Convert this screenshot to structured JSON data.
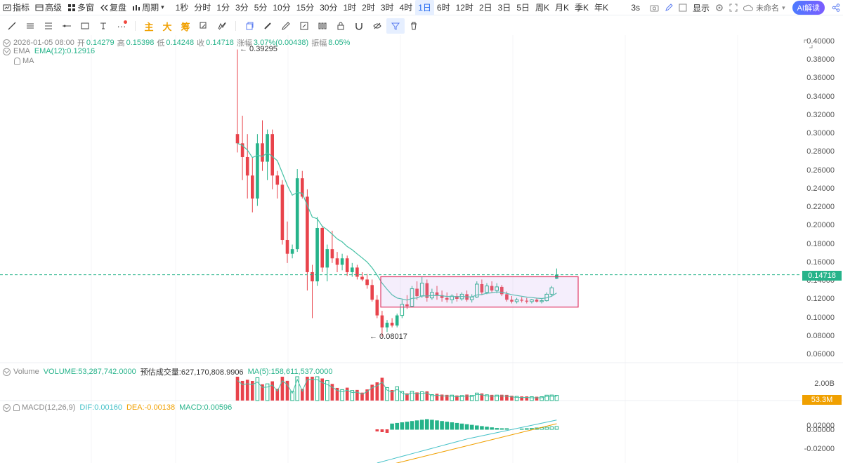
{
  "toolbar": {
    "left": [
      {
        "label": "指标",
        "icon": "indicator-icon"
      },
      {
        "label": "高级",
        "icon": "advanced-icon"
      },
      {
        "label": "多窗",
        "icon": "multi-window-icon"
      },
      {
        "label": "复盘",
        "icon": "replay-icon"
      },
      {
        "label": "周期",
        "icon": "period-icon"
      }
    ],
    "periods": [
      "1秒",
      "分时",
      "1分",
      "3分",
      "5分",
      "10分",
      "15分",
      "30分",
      "1时",
      "2时",
      "3时",
      "4时",
      "1日",
      "6时",
      "12时",
      "2日",
      "3日",
      "5日",
      "周K",
      "月K",
      "季K",
      "年K"
    ],
    "active_period": "1日",
    "refresh": "3s",
    "display": "显示",
    "workspace": "未命名",
    "ai": "AI解读"
  },
  "drawing_tools": {
    "main": "主",
    "big": "大",
    "chip": "筹"
  },
  "info": {
    "date": "2026-01-05 08:00",
    "open_label": "开",
    "open": "0.14279",
    "high_label": "高",
    "high": "0.15398",
    "low_label": "低",
    "low": "0.14248",
    "close_label": "收",
    "close": "0.14718",
    "change_label": "涨幅",
    "change": "3.07%(0.00438)",
    "amp_label": "振幅",
    "amp": "8.05%"
  },
  "ema": {
    "name": "EMA",
    "value": "EMA(12):0.12916"
  },
  "ma": {
    "name": "MA"
  },
  "volume": {
    "name": "Volume",
    "value": "VOLUME:53,287,742.0000",
    "est": "预估成交量:627,170,808.9906",
    "ma": "MA(5):158,611,537.0000",
    "axis_top": "2.00B",
    "tag": "53.3M"
  },
  "macd": {
    "name": "MACD(12,26,9)",
    "dif": "DIF:0.00160",
    "dea": "DEA:-0.00138",
    "macd": "MACD:0.00596",
    "axis": [
      "0.02000",
      "0.00000",
      "-0.02000"
    ]
  },
  "price_axis": [
    "0.40000",
    "0.38000",
    "0.36000",
    "0.34000",
    "0.32000",
    "0.30000",
    "0.28000",
    "0.26000",
    "0.24000",
    "0.22000",
    "0.20000",
    "0.18000",
    "0.16000",
    "0.14000",
    "0.12000",
    "0.10000",
    "0.08000",
    "0.06000"
  ],
  "current_price": "0.14718",
  "annotations": {
    "high": "← 0.39295",
    "low": "← 0.08017"
  },
  "colors": {
    "up": "#26b38a",
    "down": "#e8434b",
    "ema": "#45c1a5",
    "box": "#e03c6a",
    "dea": "#f0a000",
    "dif": "#45c1c8"
  },
  "chart_data": {
    "type": "candlestick",
    "ylim": [
      0.06,
      0.4
    ],
    "series": [
      {
        "name": "EMA(12)"
      }
    ],
    "candles": [
      [
        0.3,
        0.392,
        0.28,
        0.29
      ],
      [
        0.29,
        0.32,
        0.25,
        0.275
      ],
      [
        0.275,
        0.3,
        0.23,
        0.255
      ],
      [
        0.255,
        0.275,
        0.215,
        0.23
      ],
      [
        0.23,
        0.3,
        0.222,
        0.29
      ],
      [
        0.29,
        0.315,
        0.26,
        0.27
      ],
      [
        0.27,
        0.305,
        0.25,
        0.3
      ],
      [
        0.3,
        0.305,
        0.24,
        0.255
      ],
      [
        0.255,
        0.26,
        0.23,
        0.245
      ],
      [
        0.245,
        0.25,
        0.18,
        0.185
      ],
      [
        0.185,
        0.205,
        0.16,
        0.17
      ],
      [
        0.17,
        0.18,
        0.165,
        0.175
      ],
      [
        0.175,
        0.262,
        0.172,
        0.252
      ],
      [
        0.252,
        0.26,
        0.23,
        0.232
      ],
      [
        0.232,
        0.24,
        0.13,
        0.15
      ],
      [
        0.15,
        0.158,
        0.1,
        0.14
      ],
      [
        0.14,
        0.21,
        0.135,
        0.198
      ],
      [
        0.198,
        0.2,
        0.15,
        0.155
      ],
      [
        0.155,
        0.18,
        0.14,
        0.175
      ],
      [
        0.175,
        0.195,
        0.16,
        0.165
      ],
      [
        0.165,
        0.172,
        0.15,
        0.158
      ],
      [
        0.158,
        0.17,
        0.152,
        0.165
      ],
      [
        0.165,
        0.168,
        0.146,
        0.15
      ],
      [
        0.15,
        0.16,
        0.145,
        0.155
      ],
      [
        0.155,
        0.158,
        0.142,
        0.145
      ],
      [
        0.145,
        0.15,
        0.14,
        0.142
      ],
      [
        0.142,
        0.148,
        0.132,
        0.136
      ],
      [
        0.136,
        0.142,
        0.118,
        0.12
      ],
      [
        0.12,
        0.125,
        0.1,
        0.103
      ],
      [
        0.103,
        0.108,
        0.08,
        0.09
      ],
      [
        0.09,
        0.098,
        0.085,
        0.095
      ],
      [
        0.095,
        0.1,
        0.09,
        0.092
      ],
      [
        0.092,
        0.105,
        0.09,
        0.103
      ],
      [
        0.103,
        0.12,
        0.1,
        0.115
      ],
      [
        0.115,
        0.125,
        0.11,
        0.113
      ],
      [
        0.113,
        0.135,
        0.112,
        0.132
      ],
      [
        0.132,
        0.14,
        0.12,
        0.124
      ],
      [
        0.124,
        0.145,
        0.122,
        0.138
      ],
      [
        0.138,
        0.142,
        0.118,
        0.122
      ],
      [
        0.122,
        0.132,
        0.12,
        0.128
      ],
      [
        0.128,
        0.135,
        0.12,
        0.125
      ],
      [
        0.125,
        0.13,
        0.118,
        0.122
      ],
      [
        0.122,
        0.128,
        0.117,
        0.12
      ],
      [
        0.12,
        0.126,
        0.116,
        0.124
      ],
      [
        0.124,
        0.127,
        0.118,
        0.121
      ],
      [
        0.121,
        0.128,
        0.119,
        0.126
      ],
      [
        0.126,
        0.13,
        0.118,
        0.12
      ],
      [
        0.12,
        0.126,
        0.117,
        0.123
      ],
      [
        0.123,
        0.14,
        0.122,
        0.137
      ],
      [
        0.137,
        0.142,
        0.125,
        0.128
      ],
      [
        0.128,
        0.138,
        0.126,
        0.135
      ],
      [
        0.135,
        0.14,
        0.128,
        0.13
      ],
      [
        0.13,
        0.138,
        0.127,
        0.134
      ],
      [
        0.134,
        0.136,
        0.124,
        0.126
      ],
      [
        0.126,
        0.129,
        0.118,
        0.12
      ],
      [
        0.12,
        0.124,
        0.116,
        0.118
      ],
      [
        0.118,
        0.122,
        0.116,
        0.12
      ],
      [
        0.12,
        0.123,
        0.117,
        0.119
      ],
      [
        0.119,
        0.122,
        0.116,
        0.118
      ],
      [
        0.118,
        0.121,
        0.116,
        0.12
      ],
      [
        0.12,
        0.122,
        0.117,
        0.118
      ],
      [
        0.118,
        0.121,
        0.116,
        0.119
      ],
      [
        0.119,
        0.128,
        0.118,
        0.126
      ],
      [
        0.126,
        0.135,
        0.124,
        0.133
      ],
      [
        0.1428,
        0.154,
        0.1425,
        0.1472
      ]
    ]
  }
}
